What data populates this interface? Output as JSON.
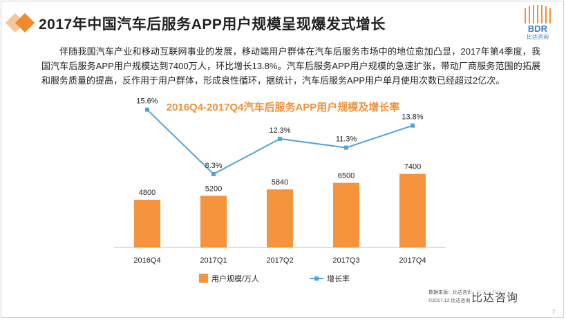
{
  "header": {
    "title": "2017年中国汽车后服务APP用户规模呈现爆发式增长",
    "logo_text": "BDR",
    "logo_subtext": "比达咨询"
  },
  "intro": {
    "paragraph": "伴随我国汽车产业和移动互联网事业的发展，移动端用户群体在汽车后服务市场中的地位愈加凸显，2017年第4季度，我国汽车后服务APP用户规模达到7400万人，环比增长13.8%。汽车后服务APP用户规模的急速扩张，带动厂商服务范围的拓展和服务质量的提高，反作用于用户群体，形成良性循环，据统计，汽车后服务APP用户单月使用次数已经超过2亿次。"
  },
  "chart_data": {
    "type": "bar",
    "title": "2016Q4-2017Q4汽车后服务APP用户规模及增长率",
    "categories": [
      "2016Q4",
      "2017Q1",
      "2017Q2",
      "2017Q3",
      "2017Q4"
    ],
    "series": [
      {
        "name": "用户规模/万人",
        "type": "bar",
        "values": [
          4800,
          5200,
          5840,
          6500,
          7400
        ],
        "labels": [
          "4800",
          "5200",
          "5840",
          "6500",
          "7400"
        ]
      },
      {
        "name": "增长率",
        "type": "line",
        "values": [
          15.6,
          8.3,
          12.3,
          11.3,
          13.8
        ],
        "labels": [
          "15.6%",
          "8.3%",
          "12.3%",
          "11.3%",
          "13.8%"
        ]
      }
    ],
    "bar_ylim": [
      0,
      16000
    ],
    "line_ylim": [
      0,
      18
    ],
    "legend": "bottom",
    "grid": false,
    "colors": {
      "bar": "#f5943c",
      "line": "#4fa3d9",
      "title": "#f0913a"
    }
  },
  "footer": {
    "source_line": "数据来源：比达咨询（BDR）数据中心",
    "copyright_line": "©2017.12  比达咨询",
    "watermark": "比达咨询",
    "page_number": "7"
  }
}
